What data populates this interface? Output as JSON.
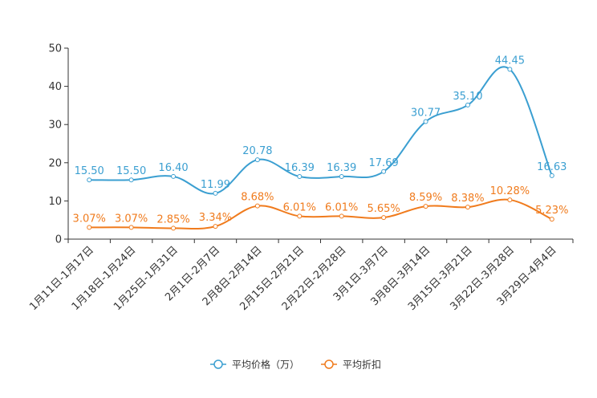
{
  "chart_data": {
    "type": "line",
    "categories": [
      "1月11日-1月17日",
      "1月18日-1月24日",
      "1月25日-1月31日",
      "2月1日-2月7日",
      "2月8日-2月14日",
      "2月15日-2月21日",
      "2月22日-2月28日",
      "3月1日-3月7日",
      "3月8日-3月14日",
      "3月15日-3月21日",
      "3月22日-3月28日",
      "3月29日-4月4日"
    ],
    "series": [
      {
        "name": "平均价格（万）",
        "color": "#3b9fd1",
        "values": [
          15.5,
          15.5,
          16.4,
          11.99,
          20.78,
          16.39,
          16.39,
          17.69,
          30.77,
          35.1,
          44.45,
          16.63
        ],
        "labels": [
          "15.50",
          "15.50",
          "16.40",
          "11.99",
          "20.78",
          "16.39",
          "16.39",
          "17.69",
          "30.77",
          "35.10",
          "44.45",
          "16.63"
        ]
      },
      {
        "name": "平均折扣",
        "color": "#f07b1d",
        "values": [
          3.07,
          3.07,
          2.85,
          3.34,
          8.68,
          6.01,
          6.01,
          5.65,
          8.59,
          8.38,
          10.28,
          5.23
        ],
        "labels": [
          "3.07%",
          "3.07%",
          "2.85%",
          "3.34%",
          "8.68%",
          "6.01%",
          "6.01%",
          "5.65%",
          "8.59%",
          "8.38%",
          "10.28%",
          "5.23%"
        ]
      }
    ],
    "yticks": [
      "0",
      "10",
      "20",
      "30",
      "40",
      "50"
    ],
    "ylim": [
      0,
      50
    ],
    "legend_position": "bottom-center"
  }
}
